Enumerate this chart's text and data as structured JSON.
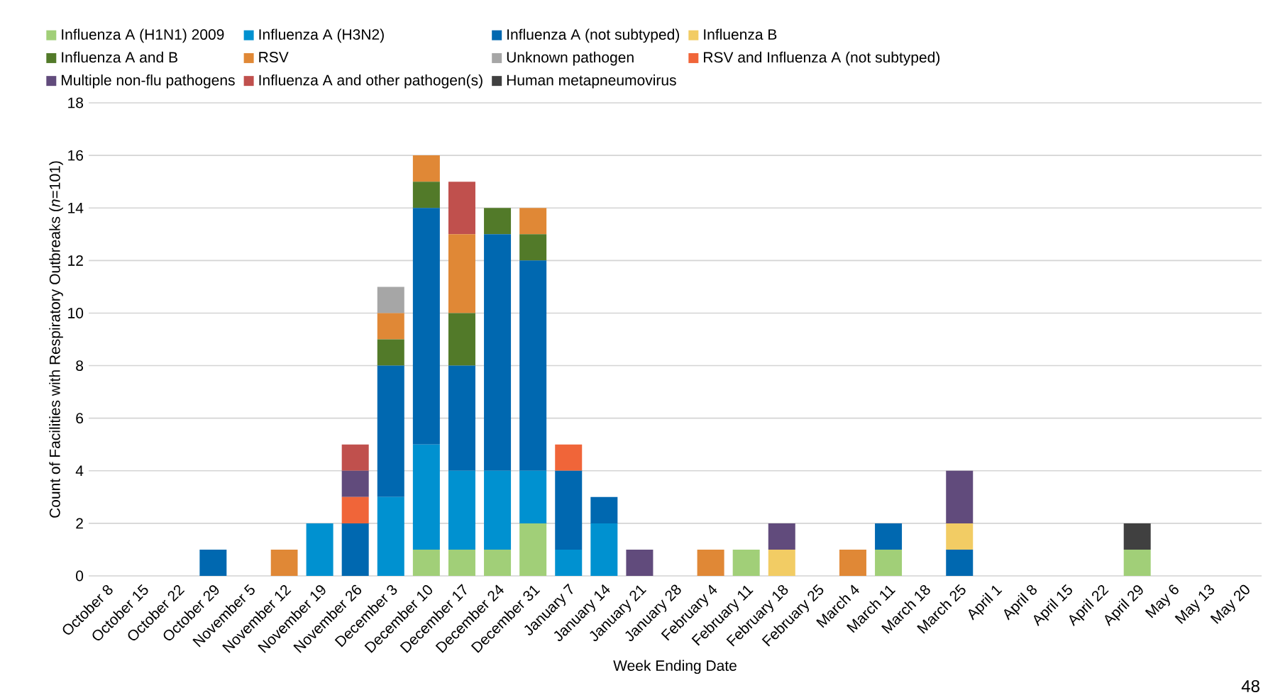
{
  "chart_data": {
    "type": "bar",
    "stacked": true,
    "xlabel": "Week Ending Date",
    "ylabel": "Count of Facilities with Respiratory Outbreaks (*n*=101)",
    "categories": [
      "October 8",
      "October 15",
      "October 22",
      "October 29",
      "November 5",
      "November 12",
      "November 19",
      "November 26",
      "December 3",
      "December 10",
      "December 17",
      "December 24",
      "December 31",
      "January 7",
      "January 14",
      "January 21",
      "January 28",
      "February 4",
      "February 11",
      "February 18",
      "February 25",
      "March 4",
      "March 11",
      "March 18",
      "March 25",
      "April 1",
      "April 8",
      "April 15",
      "April 22",
      "April 29",
      "May 6",
      "May 13",
      "May 20"
    ],
    "series": [
      {
        "name": "Influenza A (H1N1) 2009",
        "color": "#a1cf78",
        "values": [
          0,
          0,
          0,
          0,
          0,
          0,
          0,
          0,
          0,
          1,
          1,
          1,
          2,
          0,
          0,
          0,
          0,
          0,
          1,
          0,
          0,
          0,
          1,
          0,
          0,
          0,
          0,
          0,
          0,
          1,
          0,
          0,
          0
        ]
      },
      {
        "name": "Influenza A (H3N2)",
        "color": "#0091d0",
        "values": [
          0,
          0,
          0,
          0,
          0,
          0,
          2,
          0,
          3,
          4,
          3,
          3,
          2,
          1,
          2,
          0,
          0,
          0,
          0,
          0,
          0,
          0,
          0,
          0,
          0,
          0,
          0,
          0,
          0,
          0,
          0,
          0,
          0
        ]
      },
      {
        "name": "Influenza A (not subtyped)",
        "color": "#0068b0",
        "values": [
          0,
          0,
          0,
          1,
          0,
          0,
          0,
          2,
          5,
          9,
          4,
          9,
          8,
          3,
          1,
          0,
          0,
          0,
          0,
          0,
          0,
          0,
          1,
          0,
          1,
          0,
          0,
          0,
          0,
          0,
          0,
          0,
          0
        ]
      },
      {
        "name": "Influenza B",
        "color": "#f2cc64",
        "values": [
          0,
          0,
          0,
          0,
          0,
          0,
          0,
          0,
          0,
          0,
          0,
          0,
          0,
          0,
          0,
          0,
          0,
          0,
          0,
          1,
          0,
          0,
          0,
          0,
          1,
          0,
          0,
          0,
          0,
          0,
          0,
          0,
          0
        ]
      },
      {
        "name": "Influenza A and B",
        "color": "#527a29",
        "values": [
          0,
          0,
          0,
          0,
          0,
          0,
          0,
          0,
          1,
          1,
          2,
          1,
          1,
          0,
          0,
          0,
          0,
          0,
          0,
          0,
          0,
          0,
          0,
          0,
          0,
          0,
          0,
          0,
          0,
          0,
          0,
          0,
          0
        ]
      },
      {
        "name": "RSV",
        "color": "#e08836",
        "values": [
          0,
          0,
          0,
          0,
          0,
          1,
          0,
          0,
          1,
          1,
          3,
          0,
          1,
          0,
          0,
          0,
          0,
          1,
          0,
          0,
          0,
          1,
          0,
          0,
          0,
          0,
          0,
          0,
          0,
          0,
          0,
          0,
          0
        ]
      },
      {
        "name": "Unknown pathogen",
        "color": "#a6a6a6",
        "values": [
          0,
          0,
          0,
          0,
          0,
          0,
          0,
          0,
          1,
          0,
          0,
          0,
          0,
          0,
          0,
          0,
          0,
          0,
          0,
          0,
          0,
          0,
          0,
          0,
          0,
          0,
          0,
          0,
          0,
          0,
          0,
          0,
          0
        ]
      },
      {
        "name": "RSV and Influenza A (not subtyped)",
        "color": "#f06539",
        "values": [
          0,
          0,
          0,
          0,
          0,
          0,
          0,
          1,
          0,
          0,
          0,
          0,
          0,
          1,
          0,
          0,
          0,
          0,
          0,
          0,
          0,
          0,
          0,
          0,
          0,
          0,
          0,
          0,
          0,
          0,
          0,
          0,
          0
        ]
      },
      {
        "name": "Multiple non-flu pathogens",
        "color": "#614b7c",
        "values": [
          0,
          0,
          0,
          0,
          0,
          0,
          0,
          1,
          0,
          0,
          0,
          0,
          0,
          0,
          0,
          1,
          0,
          0,
          0,
          1,
          0,
          0,
          0,
          0,
          2,
          0,
          0,
          0,
          0,
          0,
          0,
          0,
          0
        ]
      },
      {
        "name": "Influenza A and other pathogen(s)",
        "color": "#c0504d",
        "values": [
          0,
          0,
          0,
          0,
          0,
          0,
          0,
          1,
          0,
          0,
          2,
          0,
          0,
          0,
          0,
          0,
          0,
          0,
          0,
          0,
          0,
          0,
          0,
          0,
          0,
          0,
          0,
          0,
          0,
          0,
          0,
          0,
          0
        ]
      },
      {
        "name": "Human metapneumovirus",
        "color": "#404040",
        "values": [
          0,
          0,
          0,
          0,
          0,
          0,
          0,
          0,
          0,
          0,
          0,
          0,
          0,
          0,
          0,
          0,
          0,
          0,
          0,
          0,
          0,
          0,
          0,
          0,
          0,
          0,
          0,
          0,
          0,
          1,
          0,
          0,
          0
        ]
      }
    ],
    "ylim": [
      0,
      18
    ],
    "yticks": [
      0,
      2,
      4,
      6,
      8,
      10,
      12,
      14,
      16,
      18
    ],
    "grid": "y",
    "legend": "top",
    "annotations": [
      "48"
    ]
  }
}
